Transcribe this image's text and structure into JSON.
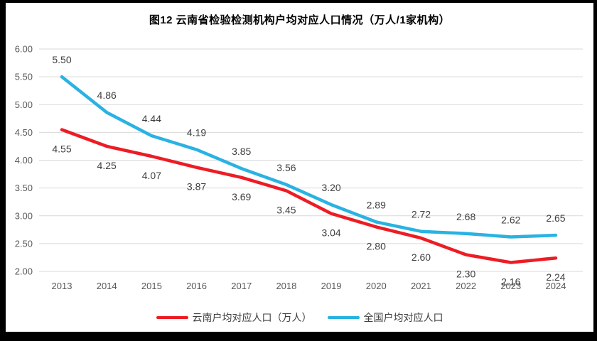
{
  "title": "图12  云南省检验检测机构户均对应人口情况（万人/1家机构）",
  "chart_data": {
    "type": "line",
    "categories": [
      "2013",
      "2014",
      "2015",
      "2016",
      "2017",
      "2018",
      "2019",
      "2020",
      "2021",
      "2022",
      "2023",
      "2024"
    ],
    "series": [
      {
        "name": "云南户均对应人口（万人）",
        "color": "#ed1c24",
        "values": [
          4.55,
          4.25,
          4.07,
          3.87,
          3.69,
          3.45,
          3.04,
          2.8,
          2.6,
          2.3,
          2.16,
          2.24
        ],
        "labels": [
          "4.55",
          "4.25",
          "4.07",
          "3.87",
          "3.69",
          "3.45",
          "3.04",
          "2.80",
          "2.60",
          "2.30",
          "2.16",
          "2.24"
        ],
        "label_position": "below"
      },
      {
        "name": "全国户均对应人口",
        "color": "#29b2e2",
        "values": [
          5.5,
          4.86,
          4.44,
          4.19,
          3.85,
          3.56,
          3.2,
          2.89,
          2.72,
          2.68,
          2.62,
          2.65
        ],
        "labels": [
          "5.50",
          "4.86",
          "4.44",
          "4.19",
          "3.85",
          "3.56",
          "3.20",
          "2.89",
          "2.72",
          "2.68",
          "2.62",
          "2.65"
        ],
        "label_position": "above"
      }
    ],
    "xlabel": "",
    "ylabel": "",
    "ylim": [
      2.0,
      6.0
    ],
    "ytick_step": 0.5,
    "yticks": [
      "6.00",
      "5.50",
      "5.00",
      "4.50",
      "4.00",
      "3.50",
      "3.00",
      "2.50",
      "2.00"
    ],
    "grid": true,
    "gridline_color": "#d9d9d9",
    "axis_label_color": "#595959",
    "data_label_color": "#3f3f3f",
    "legend_position": "bottom"
  }
}
